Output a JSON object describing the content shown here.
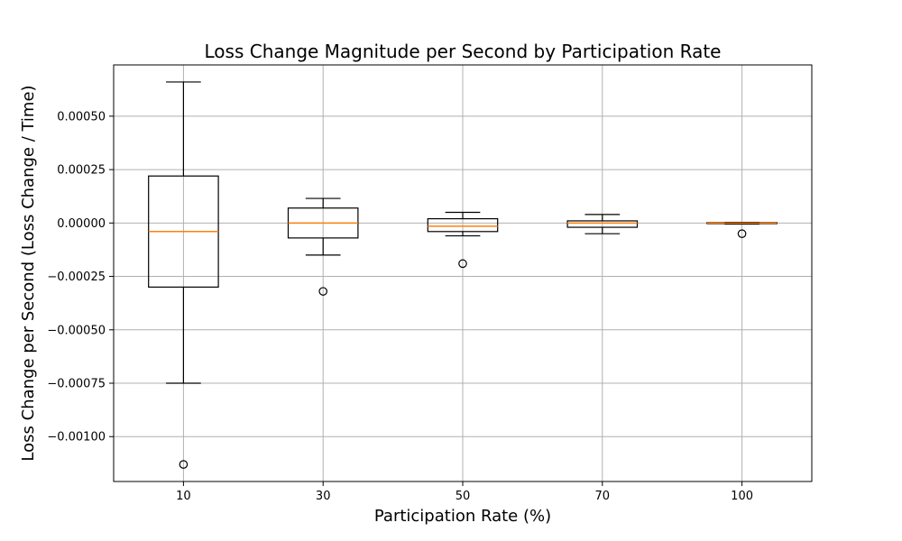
{
  "chart_data": {
    "type": "box",
    "title": "Loss Change Magnitude per Second by Participation Rate",
    "xlabel": "Participation Rate (%)",
    "ylabel": "Loss Change per Second (Loss Change / Time)",
    "categories": [
      "10",
      "30",
      "50",
      "70",
      "100"
    ],
    "ylim": [
      -0.00121,
      0.00074
    ],
    "yticks": [
      -0.001,
      -0.00075,
      -0.0005,
      -0.00025,
      0.0,
      0.00025,
      0.0005
    ],
    "ytick_labels": [
      "−0.00100",
      "−0.00075",
      "−0.00050",
      "−0.00025",
      "0.00000",
      "0.00025",
      "0.00050"
    ],
    "grid": true,
    "boxes": [
      {
        "whislo": -0.00075,
        "q1": -0.0003,
        "med": -4e-05,
        "q3": 0.00022,
        "whishi": 0.00066,
        "fliers": [
          -0.00113
        ]
      },
      {
        "whislo": -0.00015,
        "q1": -7e-05,
        "med": 0.0,
        "q3": 7e-05,
        "whishi": 0.000115,
        "fliers": [
          -0.00032
        ]
      },
      {
        "whislo": -6e-05,
        "q1": -4e-05,
        "med": -1.5e-05,
        "q3": 2e-05,
        "whishi": 5e-05,
        "fliers": [
          -0.00019
        ]
      },
      {
        "whislo": -5e-05,
        "q1": -2e-05,
        "med": 0.0,
        "q3": 1e-05,
        "whishi": 4e-05,
        "fliers": []
      },
      {
        "whislo": -5e-06,
        "q1": -3e-06,
        "med": 0.0,
        "q3": 2e-06,
        "whishi": 3e-06,
        "fliers": [
          -5e-05
        ]
      }
    ],
    "colors": {
      "median": "#ff7f0e",
      "box": "#000000",
      "grid": "#b0b0b0"
    }
  }
}
